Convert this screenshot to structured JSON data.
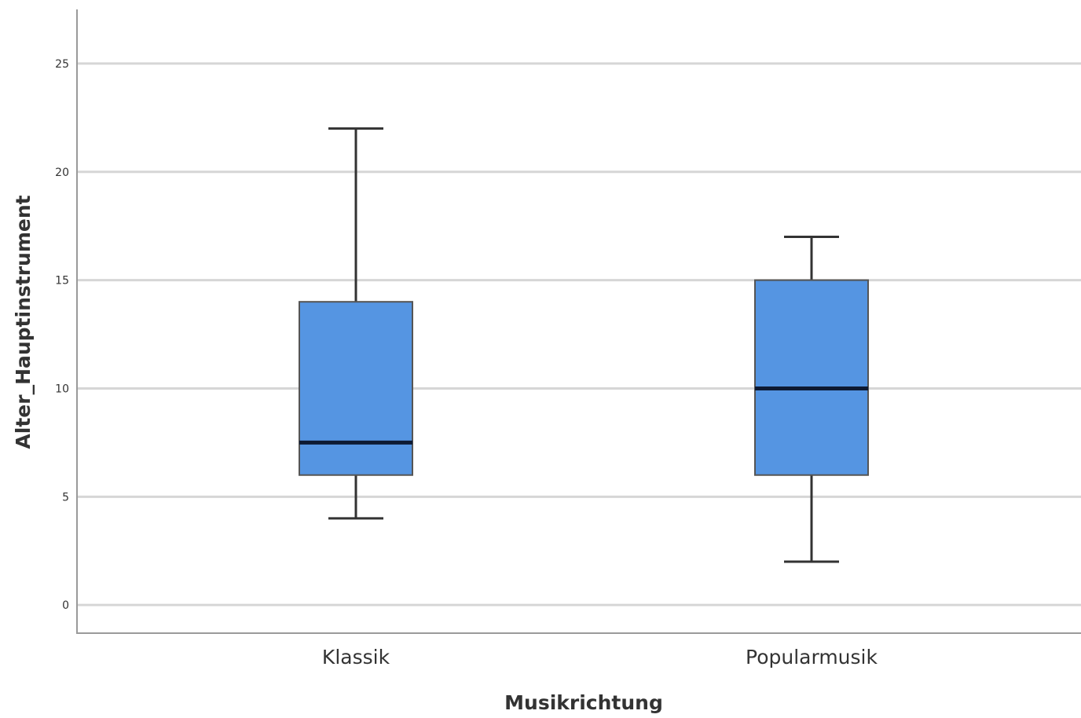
{
  "chart_data": {
    "type": "boxplot",
    "xlabel": "Musikrichtung",
    "ylabel": "Alter_Hauptinstrument",
    "ylim": [
      -1.3,
      27.5
    ],
    "yticks": [
      0,
      5,
      10,
      15,
      20,
      25
    ],
    "grid": true,
    "categories": [
      "Klassik",
      "Popularmusik"
    ],
    "boxes": [
      {
        "category": "Klassik",
        "min": 4,
        "q1": 6,
        "median": 7.5,
        "q3": 14,
        "max": 22
      },
      {
        "category": "Popularmusik",
        "min": 2,
        "q1": 6,
        "median": 10,
        "q3": 15,
        "max": 17
      }
    ],
    "box_color": "#5595e2"
  }
}
